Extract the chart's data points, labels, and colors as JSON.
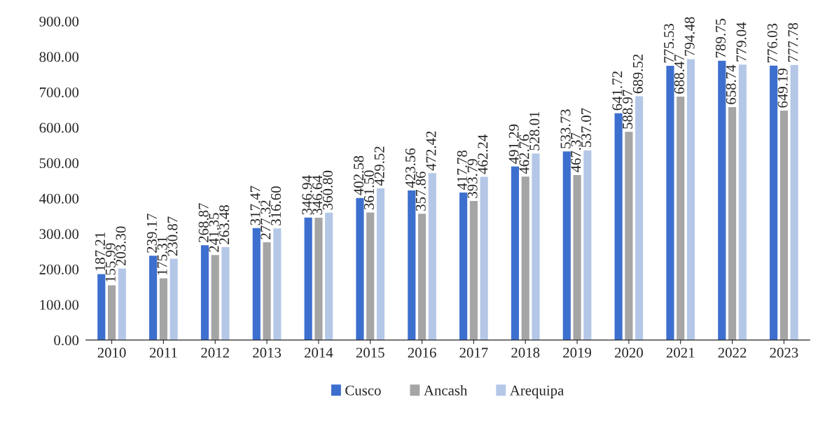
{
  "chart_data": {
    "type": "bar",
    "categories": [
      "2010",
      "2011",
      "2012",
      "2013",
      "2014",
      "2015",
      "2016",
      "2017",
      "2018",
      "2019",
      "2020",
      "2021",
      "2022",
      "2023"
    ],
    "series": [
      {
        "name": "Cusco",
        "color": "#3d6fcf",
        "values": [
          187.21,
          239.17,
          268.87,
          317.47,
          346.94,
          402.58,
          423.56,
          417.78,
          491.29,
          533.73,
          641.72,
          775.53,
          789.75,
          776.03
        ],
        "value_labels": [
          "187.21",
          "239.17",
          "268.87",
          "317.47",
          "346.94",
          "402.58",
          "423.56",
          "417.78",
          "491.29",
          "533.73",
          "641.72",
          "775.53",
          "789.75",
          "776.03"
        ]
      },
      {
        "name": "Ancash",
        "color": "#a5a5a5",
        "values": [
          155.99,
          175.31,
          241.35,
          277.32,
          346.64,
          361.5,
          357.86,
          393.79,
          462.76,
          467.37,
          588.97,
          688.47,
          658.74,
          649.19
        ],
        "value_labels": [
          "155.99",
          "175.31",
          "241.35",
          "277.32",
          "346.64",
          "361.50",
          "357.86",
          "393.79",
          "462.76",
          "467.37",
          "588.97",
          "688.47",
          "658.74",
          "649.19"
        ]
      },
      {
        "name": "Arequipa",
        "color": "#b4c7e7",
        "values": [
          203.3,
          230.87,
          263.48,
          316.6,
          360.8,
          429.52,
          472.42,
          462.24,
          528.01,
          537.07,
          689.52,
          794.48,
          779.04,
          777.78
        ],
        "value_labels": [
          "203.30",
          "230.87",
          "263.48",
          "316.60",
          "360.80",
          "429.52",
          "472.42",
          "462.24",
          "528.01",
          "537.07",
          "689.52",
          "794.48",
          "779.04",
          "777.78"
        ]
      }
    ],
    "ylim": [
      0,
      900
    ],
    "yticks": [
      {
        "value": 0,
        "label": "0.00"
      },
      {
        "value": 100,
        "label": "100.00"
      },
      {
        "value": 200,
        "label": "200.00"
      },
      {
        "value": 300,
        "label": "300.00"
      },
      {
        "value": 400,
        "label": "400.00"
      },
      {
        "value": 500,
        "label": "500.00"
      },
      {
        "value": 600,
        "label": "600.00"
      },
      {
        "value": 700,
        "label": "700.00"
      },
      {
        "value": 800,
        "label": "800.00"
      },
      {
        "value": 900,
        "label": "900.00"
      }
    ],
    "grid": false,
    "legend": "bottom"
  }
}
